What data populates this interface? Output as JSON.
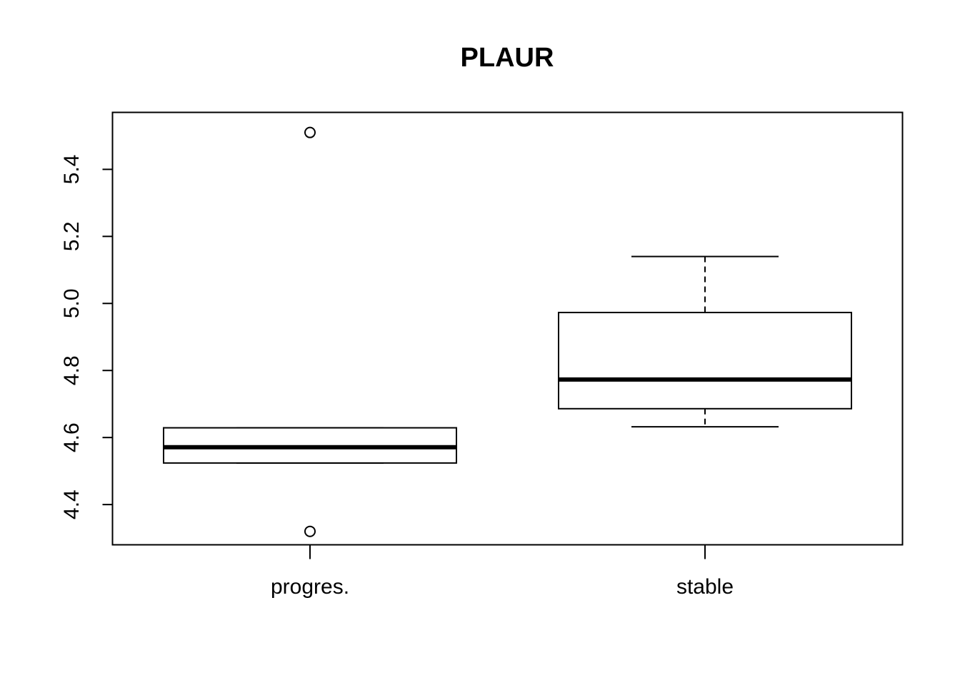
{
  "chart_data": {
    "type": "boxplot",
    "title": "PLAUR",
    "xlabel": "",
    "ylabel": "",
    "ylim": [
      4.28,
      5.57
    ],
    "yticks": [
      "4.4",
      "4.6",
      "4.8",
      "5.0",
      "5.2",
      "5.4"
    ],
    "grid": false,
    "legend": "none",
    "categories": [
      "progres.",
      "stable"
    ],
    "boxes": [
      {
        "name": "progres.",
        "whisker_low": 4.524,
        "q1": 4.524,
        "median": 4.571,
        "q3": 4.629,
        "whisker_high": 4.629,
        "outliers": [
          5.51,
          4.32
        ]
      },
      {
        "name": "stable",
        "whisker_low": 4.632,
        "q1": 4.686,
        "median": 4.773,
        "q3": 4.973,
        "whisker_high": 5.14,
        "outliers": []
      }
    ]
  }
}
